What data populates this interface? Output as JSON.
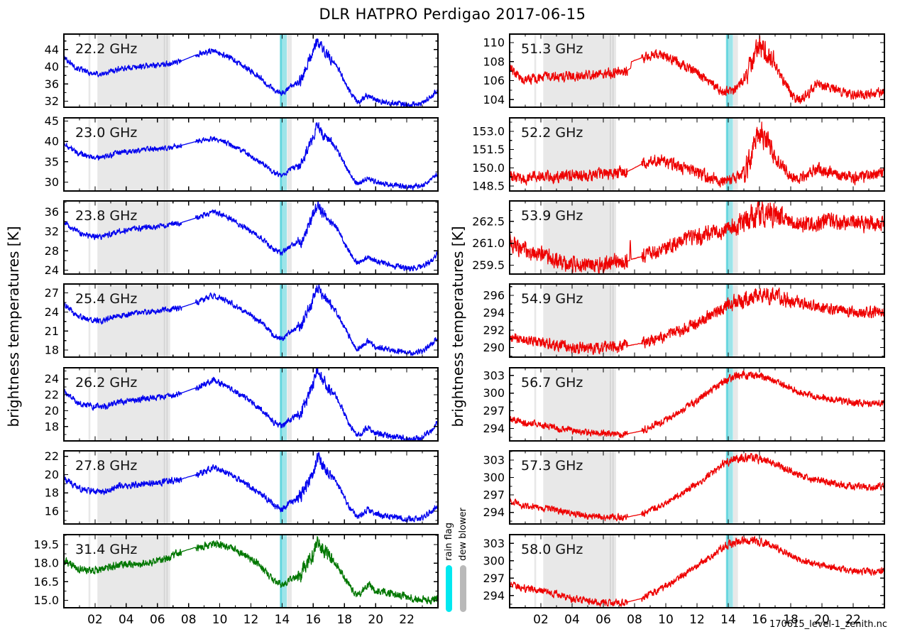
{
  "title": "DLR HATPRO  Perdigao  2017-06-15",
  "ylabel": "brightness temperatures [K]",
  "filename": "170615_level-1_zenith.nc",
  "legend": {
    "rain_flag": "rain flag",
    "dew_blower": "dew blower",
    "rain_color": "#00e8f0",
    "dew_color": "#b9b9b9"
  },
  "flags": {
    "dew_blower_bands": [
      [
        1.58,
        1.7
      ],
      [
        2.15,
        6.82
      ],
      [
        14.32,
        14.62
      ]
    ],
    "dew_blower_lines": [
      6.45,
      6.62
    ],
    "rain_flag_band": [
      13.85,
      14.3
    ],
    "rain_flag_stripe": [
      13.88,
      13.99
    ],
    "band_gray": "#e8e8e8",
    "band_gray_dark": "#d2d2d2",
    "band_cyan": "#9de4e9",
    "band_cyan_dark": "#63d5de"
  },
  "xaxis": {
    "hours": [
      2,
      4,
      6,
      8,
      10,
      12,
      14,
      16,
      18,
      20,
      22
    ],
    "tick_labels": [
      "02",
      "04",
      "06",
      "08",
      "10",
      "12",
      "14",
      "16",
      "18",
      "20",
      "22"
    ],
    "range": [
      0,
      24
    ]
  },
  "chart_data": {
    "type": "line",
    "x_unit": "hour of day",
    "x_range_hours": [
      0,
      24
    ],
    "gap_window": [
      7.55,
      8.45
    ],
    "left_t": [
      0,
      0.8,
      1.6,
      2.4,
      3.5,
      5,
      6.5,
      7.5,
      8.5,
      9.6,
      10.5,
      11.5,
      12.5,
      13.5,
      14,
      14.5,
      15.2,
      16,
      16.25,
      16.6,
      17.5,
      18.3,
      18.8,
      19.1,
      19.45,
      20,
      21,
      22.2,
      23,
      23.6,
      24
    ],
    "right_t": [
      0,
      0.8,
      1.6,
      2.5,
      4,
      5.5,
      7,
      7.55,
      8.45,
      9.3,
      10,
      11,
      12,
      13,
      13.8,
      14.5,
      15.1,
      15.6,
      16,
      16.4,
      17,
      18,
      18.5,
      19,
      19.6,
      20.3,
      21,
      22,
      23,
      24
    ],
    "panels": [
      {
        "label": "22.2 GHz",
        "color": "#0000ee",
        "ylim": [
          30.6,
          47.6
        ],
        "yticks": [
          32,
          36,
          40,
          44
        ],
        "ytick_labels": [
          "32",
          "36",
          "40",
          "44"
        ],
        "noise": 0.5,
        "burst": {
          "window": [
            15.0,
            17.2
          ],
          "factor": 2.0
        },
        "t_ref": "left_t",
        "values": [
          42.2,
          39.8,
          38.6,
          38.2,
          39.5,
          40.1,
          40.6,
          41.3,
          42.8,
          43.7,
          42.4,
          40.2,
          37.8,
          34.4,
          33.8,
          35.2,
          36.8,
          43.5,
          46.2,
          44.0,
          40.5,
          34.5,
          31.9,
          32.2,
          33.4,
          32.2,
          31.7,
          31.1,
          31.5,
          33.2,
          34.6
        ]
      },
      {
        "label": "23.0 GHz",
        "color": "#0000ee",
        "ylim": [
          27.8,
          45.8
        ],
        "yticks": [
          30,
          35,
          40,
          45
        ],
        "ytick_labels": [
          "30",
          "35",
          "40",
          "45"
        ],
        "noise": 0.5,
        "burst": {
          "window": [
            15.0,
            17.2
          ],
          "factor": 2.0
        },
        "t_ref": "left_t",
        "values": [
          39.6,
          37.3,
          36.3,
          36.0,
          37.2,
          37.9,
          38.4,
          39.0,
          40.0,
          40.8,
          39.6,
          37.5,
          35.3,
          32.3,
          31.7,
          33.0,
          34.5,
          41.0,
          44.6,
          42.0,
          38.2,
          32.3,
          29.6,
          30.0,
          31.2,
          30.0,
          29.4,
          28.8,
          29.2,
          30.6,
          32.0
        ]
      },
      {
        "label": "23.8 GHz",
        "color": "#0000ee",
        "ylim": [
          23.2,
          38.3
        ],
        "yticks": [
          24,
          28,
          32,
          36
        ],
        "ytick_labels": [
          "24",
          "28",
          "32",
          "36"
        ],
        "noise": 0.45,
        "burst": {
          "window": [
            15.0,
            17.2
          ],
          "factor": 2.0
        },
        "t_ref": "left_t",
        "values": [
          33.9,
          32.0,
          31.0,
          30.8,
          32.0,
          32.7,
          33.2,
          33.8,
          34.8,
          36.1,
          35.0,
          33.0,
          31.0,
          28.2,
          27.6,
          28.8,
          30.0,
          35.3,
          37.4,
          35.8,
          32.8,
          27.8,
          25.4,
          25.8,
          26.8,
          25.8,
          25.0,
          24.3,
          24.7,
          26.0,
          27.4
        ]
      },
      {
        "label": "25.4 GHz",
        "color": "#0000ee",
        "ylim": [
          16.9,
          28.4
        ],
        "yticks": [
          18,
          21,
          24,
          27
        ],
        "ytick_labels": [
          "18",
          "21",
          "24",
          "27"
        ],
        "noise": 0.35,
        "burst": {
          "window": [
            15.0,
            17.2
          ],
          "factor": 2.0
        },
        "t_ref": "left_t",
        "values": [
          25.2,
          23.4,
          22.8,
          22.6,
          23.4,
          23.9,
          24.3,
          24.7,
          25.5,
          26.6,
          25.7,
          24.2,
          22.6,
          20.3,
          19.8,
          20.8,
          21.8,
          25.9,
          27.9,
          26.6,
          24.0,
          20.2,
          18.2,
          18.5,
          19.4,
          18.5,
          18.0,
          17.5,
          17.8,
          18.9,
          19.9
        ]
      },
      {
        "label": "26.2 GHz",
        "color": "#0000ee",
        "ylim": [
          16.2,
          25.4
        ],
        "yticks": [
          18,
          20,
          22,
          24
        ],
        "ytick_labels": [
          "18",
          "20",
          "22",
          "24"
        ],
        "noise": 0.3,
        "burst": {
          "window": [
            15.0,
            17.2
          ],
          "factor": 2.0
        },
        "t_ref": "left_t",
        "values": [
          22.4,
          21.0,
          20.6,
          20.4,
          21.1,
          21.5,
          21.8,
          22.2,
          22.9,
          23.9,
          23.1,
          21.8,
          20.4,
          18.5,
          18.1,
          18.9,
          19.8,
          23.3,
          25.1,
          23.9,
          21.7,
          18.4,
          16.9,
          17.1,
          17.9,
          17.2,
          16.8,
          16.4,
          16.7,
          17.6,
          18.5
        ]
      },
      {
        "label": "27.8 GHz",
        "color": "#0000ee",
        "ylim": [
          14.6,
          22.6
        ],
        "yticks": [
          16,
          18,
          20,
          22
        ],
        "ytick_labels": [
          "16",
          "18",
          "20",
          "22"
        ],
        "noise": 0.27,
        "burst": {
          "window": [
            15.0,
            17.2
          ],
          "factor": 2.0
        },
        "t_ref": "left_t",
        "values": [
          19.6,
          18.6,
          18.2,
          18.1,
          18.7,
          19.0,
          19.2,
          19.5,
          20.0,
          20.8,
          20.2,
          19.2,
          18.1,
          16.6,
          16.2,
          16.9,
          17.6,
          20.3,
          21.9,
          20.9,
          19.1,
          16.5,
          15.4,
          15.6,
          16.2,
          15.7,
          15.4,
          15.1,
          15.3,
          16.0,
          16.7
        ]
      },
      {
        "label": "31.4 GHz",
        "color": "#007700",
        "ylim": [
          14.4,
          20.3
        ],
        "yticks": [
          15.0,
          16.5,
          18.0,
          19.5
        ],
        "ytick_labels": [
          "15.0",
          "16.5",
          "18.0",
          "19.5"
        ],
        "noise": 0.24,
        "burst": {
          "window": [
            15.0,
            17.2
          ],
          "factor": 2.0
        },
        "t_ref": "left_t",
        "values": [
          18.2,
          17.6,
          17.4,
          17.5,
          17.9,
          18.0,
          18.3,
          18.9,
          19.3,
          19.5,
          19.3,
          18.7,
          17.9,
          16.6,
          16.2,
          16.6,
          17.1,
          18.8,
          19.8,
          19.1,
          17.9,
          16.3,
          15.4,
          15.7,
          16.3,
          15.8,
          15.6,
          15.2,
          15.1,
          14.9,
          15.1
        ]
      },
      {
        "label": "51.3 GHz",
        "color": "#ee0000",
        "ylim": [
          103.2,
          110.9
        ],
        "yticks": [
          104,
          106,
          108,
          110
        ],
        "ytick_labels": [
          "104",
          "106",
          "108",
          "110"
        ],
        "noise": 0.4,
        "burst": {
          "window": [
            15.0,
            16.9
          ],
          "factor": 2.2
        },
        "keypoints": [
          [
            0,
            107.2
          ],
          [
            0.8,
            106.1
          ],
          [
            1.6,
            106.3
          ],
          [
            2.5,
            106.4
          ],
          [
            4,
            106.5
          ],
          [
            5.5,
            106.6
          ],
          [
            7,
            106.9
          ],
          [
            7.55,
            107.1
          ],
          [
            7.75,
            107.3
          ],
          [
            7.8,
            108.0
          ],
          [
            8.45,
            108.4
          ],
          [
            9.3,
            108.8
          ],
          [
            10,
            108.5
          ],
          [
            11,
            107.8
          ],
          [
            12,
            106.9
          ],
          [
            13,
            105.6
          ],
          [
            13.8,
            104.8
          ],
          [
            14.5,
            105.1
          ],
          [
            15.1,
            106.2
          ],
          [
            15.6,
            108.2
          ],
          [
            16,
            109.8
          ],
          [
            16.4,
            109.2
          ],
          [
            17,
            107.6
          ],
          [
            18,
            104.7
          ],
          [
            18.5,
            103.9
          ],
          [
            19,
            104.4
          ],
          [
            19.6,
            105.6
          ],
          [
            20.3,
            105.4
          ],
          [
            21,
            104.9
          ],
          [
            22,
            104.5
          ],
          [
            23,
            104.6
          ],
          [
            24,
            104.9
          ]
        ]
      },
      {
        "label": "52.2 GHz",
        "color": "#ee0000",
        "ylim": [
          148.1,
          154.1
        ],
        "yticks": [
          148.5,
          150.0,
          151.5,
          153.0
        ],
        "ytick_labels": [
          "148.5",
          "150.0",
          "151.5",
          "153.0"
        ],
        "noise": 0.38,
        "burst": {
          "window": [
            15.0,
            16.9
          ],
          "factor": 2.2
        },
        "t_ref": "right_t",
        "values": [
          149.5,
          149.0,
          149.2,
          149.3,
          149.3,
          149.4,
          149.6,
          149.7,
          150.3,
          150.7,
          150.5,
          150.0,
          149.6,
          149.1,
          148.8,
          149.1,
          149.9,
          151.4,
          153.1,
          152.3,
          150.9,
          149.4,
          149.1,
          149.3,
          149.9,
          149.7,
          149.4,
          149.2,
          149.3,
          149.6
        ]
      },
      {
        "label": "53.9 GHz",
        "color": "#ee0000",
        "ylim": [
          258.9,
          263.9
        ],
        "yticks": [
          259.5,
          261.0,
          262.5
        ],
        "ytick_labels": [
          "259.5",
          "261.0",
          "262.5"
        ],
        "noise": 0.42,
        "burst": {
          "window": [
            14.5,
            17.5
          ],
          "factor": 1.5
        },
        "keypoints": [
          [
            0,
            261.1
          ],
          [
            0.8,
            260.6
          ],
          [
            1.6,
            260.4
          ],
          [
            2.5,
            260.1
          ],
          [
            4,
            259.6
          ],
          [
            5.5,
            259.5
          ],
          [
            7,
            259.7
          ],
          [
            7.55,
            259.8
          ],
          [
            7.68,
            259.8
          ],
          [
            7.72,
            261.4
          ],
          [
            7.78,
            259.9
          ],
          [
            8.45,
            260.1
          ],
          [
            9.3,
            260.4
          ],
          [
            10,
            260.7
          ],
          [
            11,
            261.1
          ],
          [
            12,
            261.4
          ],
          [
            13,
            261.7
          ],
          [
            13.8,
            262.0
          ],
          [
            14.5,
            262.2
          ],
          [
            15.1,
            262.5
          ],
          [
            15.6,
            262.8
          ],
          [
            16,
            263.1
          ],
          [
            16.4,
            263.0
          ],
          [
            17,
            262.8
          ],
          [
            18,
            262.5
          ],
          [
            18.5,
            262.4
          ],
          [
            19,
            262.3
          ],
          [
            19.6,
            262.4
          ],
          [
            20.3,
            262.6
          ],
          [
            21,
            262.4
          ],
          [
            22,
            262.3
          ],
          [
            23,
            262.4
          ],
          [
            24,
            262.5
          ]
        ]
      },
      {
        "label": "54.9 GHz",
        "color": "#ee0000",
        "ylim": [
          288.9,
          297.3
        ],
        "yticks": [
          290,
          292,
          294,
          296
        ],
        "ytick_labels": [
          "290",
          "292",
          "294",
          "296"
        ],
        "noise": 0.5,
        "burst": {
          "window": [
            13.5,
            18.0
          ],
          "factor": 1.4
        },
        "t_ref": "right_t",
        "values": [
          291.3,
          290.9,
          290.7,
          290.4,
          290.0,
          289.9,
          290.1,
          290.2,
          290.5,
          290.9,
          291.3,
          292.0,
          292.9,
          293.9,
          294.7,
          295.2,
          295.6,
          295.9,
          296.0,
          295.9,
          295.8,
          295.4,
          295.2,
          295.0,
          294.8,
          294.6,
          294.4,
          294.1,
          294.0,
          294.2
        ]
      },
      {
        "label": "56.7 GHz",
        "color": "#ee0000",
        "ylim": [
          291.9,
          304.3
        ],
        "yticks": [
          294,
          297,
          300,
          303
        ],
        "ytick_labels": [
          "294",
          "297",
          "300",
          "303"
        ],
        "noise": 0.45,
        "burst": {
          "window": [
            13.5,
            16.5
          ],
          "factor": 1.25
        },
        "t_ref": "right_t",
        "values": [
          295.6,
          295.0,
          294.8,
          294.4,
          293.6,
          293.1,
          293.0,
          293.1,
          293.6,
          294.6,
          295.4,
          297.0,
          298.7,
          300.7,
          302.1,
          302.9,
          303.1,
          303.1,
          302.9,
          302.7,
          302.1,
          300.9,
          300.3,
          299.8,
          299.4,
          299.1,
          298.8,
          298.4,
          298.2,
          298.5
        ]
      },
      {
        "label": "57.3 GHz",
        "color": "#ee0000",
        "ylim": [
          292.0,
          304.6
        ],
        "yticks": [
          294,
          297,
          300,
          303
        ],
        "ytick_labels": [
          "294",
          "297",
          "300",
          "303"
        ],
        "noise": 0.45,
        "burst": {
          "window": [
            13.5,
            16.5
          ],
          "factor": 1.25
        },
        "t_ref": "right_t",
        "values": [
          295.9,
          295.2,
          295.0,
          294.6,
          293.8,
          293.2,
          293.1,
          293.2,
          293.7,
          294.7,
          295.5,
          297.2,
          298.9,
          300.9,
          302.4,
          303.2,
          303.4,
          303.4,
          303.2,
          303.0,
          302.4,
          301.1,
          300.5,
          300.0,
          299.6,
          299.2,
          298.9,
          298.5,
          298.3,
          298.6
        ]
      },
      {
        "label": "58.0 GHz",
        "color": "#ee0000",
        "ylim": [
          291.9,
          304.5
        ],
        "yticks": [
          294,
          297,
          300,
          303
        ],
        "ytick_labels": [
          "294",
          "297",
          "300",
          "303"
        ],
        "noise": 0.45,
        "burst": {
          "window": [
            13.5,
            16.5
          ],
          "factor": 1.25
        },
        "t_ref": "right_t",
        "values": [
          296.0,
          295.3,
          295.0,
          294.6,
          293.5,
          292.9,
          292.8,
          292.9,
          293.5,
          294.6,
          295.5,
          297.3,
          299.0,
          301.0,
          302.5,
          303.3,
          303.5,
          303.5,
          303.2,
          303.0,
          302.3,
          301.0,
          300.4,
          299.8,
          299.4,
          299.0,
          298.7,
          298.3,
          298.1,
          298.4
        ]
      }
    ]
  }
}
